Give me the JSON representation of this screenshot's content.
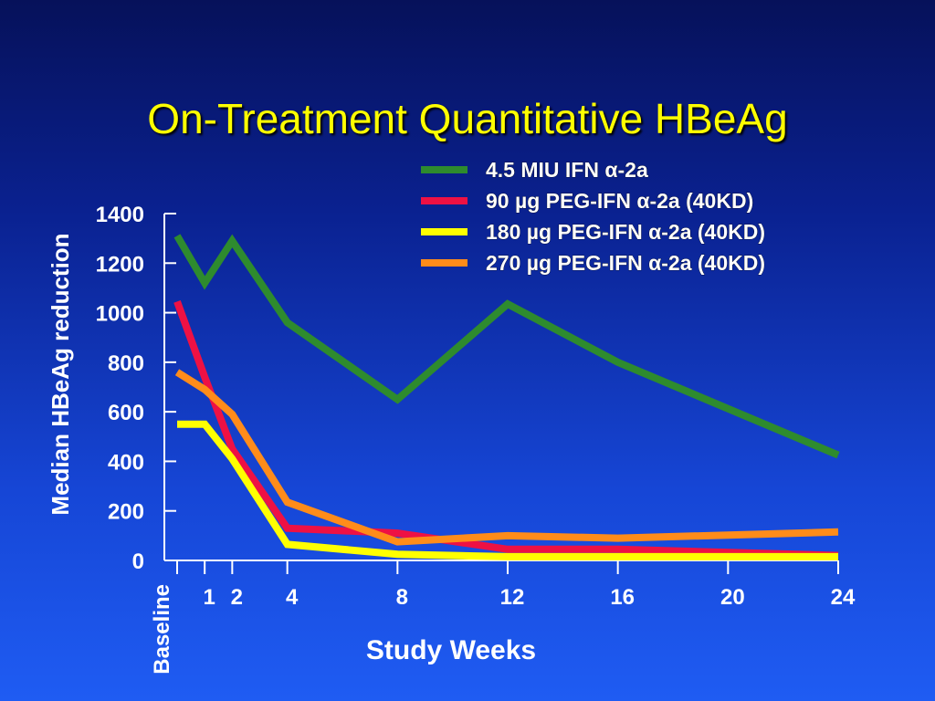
{
  "title": "On-Treatment Quantitative HBeAg",
  "chart_data": {
    "type": "line",
    "title": "On-Treatment Quantitative HBeAg",
    "xlabel": "Study Weeks",
    "ylabel": "Median HBeAg reduction",
    "xlim": [
      0,
      24
    ],
    "ylim": [
      0,
      1400
    ],
    "y_ticks": [
      0,
      200,
      400,
      600,
      800,
      1000,
      1200,
      1400
    ],
    "x_ticks": [
      {
        "value": 0,
        "label": "Baseline"
      },
      {
        "value": 1,
        "label": "1"
      },
      {
        "value": 2,
        "label": "2"
      },
      {
        "value": 4,
        "label": "4"
      },
      {
        "value": 8,
        "label": "8"
      },
      {
        "value": 12,
        "label": "12"
      },
      {
        "value": 16,
        "label": "16"
      },
      {
        "value": 20,
        "label": "20"
      },
      {
        "value": 24,
        "label": "24"
      }
    ],
    "grid": false,
    "legend_position": "top-right",
    "series": [
      {
        "name": "4.5 MIU IFN α-2a",
        "color": "#2e8b2e",
        "x": [
          0,
          1,
          2,
          4,
          8,
          12,
          16,
          24
        ],
        "y": [
          1310,
          1120,
          1290,
          960,
          650,
          1035,
          800,
          425
        ]
      },
      {
        "name": "90 µg PEG-IFN α-2a (40KD)",
        "color": "#ee1144",
        "x": [
          0,
          1,
          2,
          4,
          8,
          12,
          16,
          24
        ],
        "y": [
          1045,
          740,
          450,
          130,
          110,
          45,
          45,
          20
        ]
      },
      {
        "name": "180 µg PEG-IFN α-2a (40KD)",
        "color": "#ffff00",
        "x": [
          0,
          1,
          2,
          4,
          8,
          12,
          16,
          24
        ],
        "y": [
          550,
          550,
          410,
          65,
          25,
          15,
          15,
          15
        ]
      },
      {
        "name": "270 µg PEG-IFN α-2a (40KD)",
        "color": "#ff8c1a",
        "x": [
          0,
          1,
          2,
          4,
          8,
          12,
          16,
          24
        ],
        "y": [
          760,
          690,
          590,
          235,
          75,
          100,
          90,
          115
        ]
      }
    ]
  }
}
